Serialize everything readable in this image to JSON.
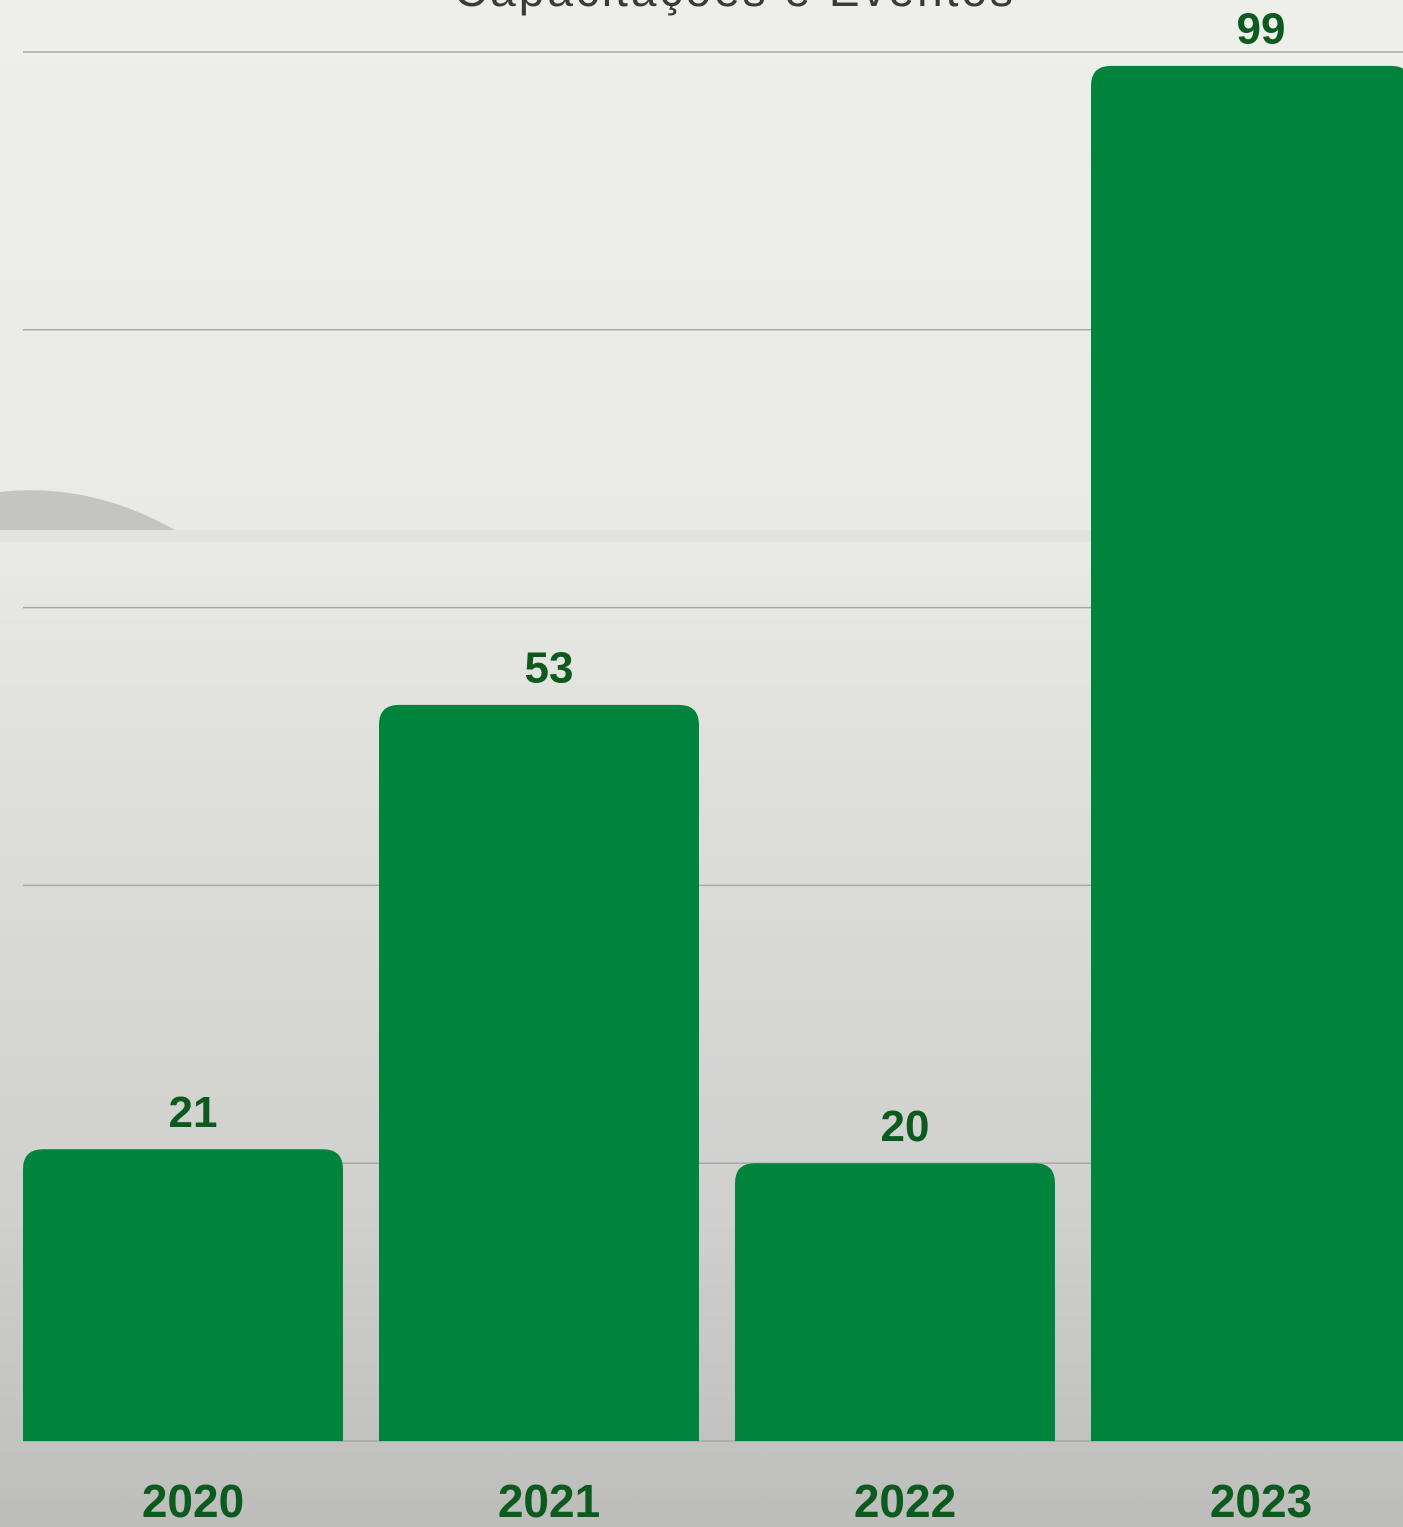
{
  "chart_data": {
    "type": "bar",
    "title": "Capacitações e Eventos",
    "categories": [
      "2020",
      "2021",
      "2022",
      "2023"
    ],
    "values": [
      21,
      53,
      20,
      99
    ],
    "color": "#00843d",
    "ylim": [
      0,
      100
    ],
    "yticks": [
      0,
      20,
      40,
      60,
      80,
      100
    ],
    "grid": true
  }
}
